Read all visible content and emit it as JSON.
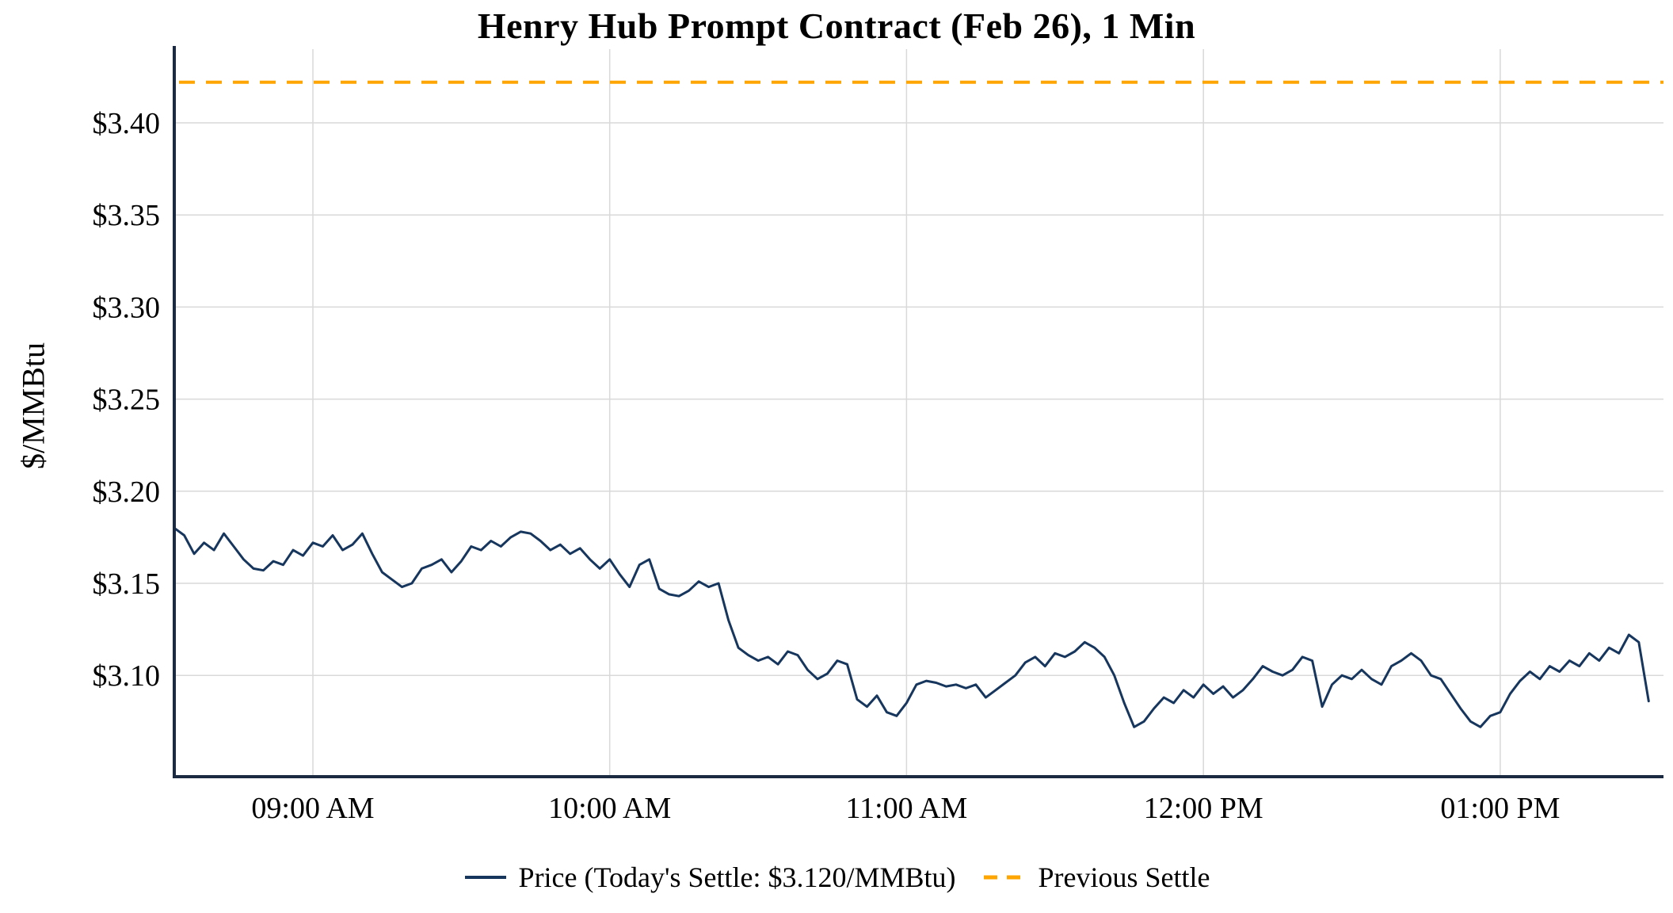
{
  "chart_data": {
    "type": "line",
    "title": "Henry Hub Prompt Contract (Feb 26), 1 Min",
    "xlabel": "",
    "ylabel": "$/MMBtu",
    "ylim": [
      3.045,
      3.44
    ],
    "xlim_hours": [
      8.533,
      13.55
    ],
    "grid": true,
    "grid_color": "#d9d9d9",
    "axis_color": "#1b2a41",
    "background_color": "#ffffff",
    "legend_position": "bottom",
    "x_ticks": [
      {
        "hour": 9,
        "label": "09:00 AM"
      },
      {
        "hour": 10,
        "label": "10:00 AM"
      },
      {
        "hour": 11,
        "label": "11:00 AM"
      },
      {
        "hour": 12,
        "label": "12:00 PM"
      },
      {
        "hour": 13,
        "label": "01:00 PM"
      }
    ],
    "y_ticks": [
      {
        "value": 3.1,
        "label": "$3.10"
      },
      {
        "value": 3.15,
        "label": "$3.15"
      },
      {
        "value": 3.2,
        "label": "$3.20"
      },
      {
        "value": 3.25,
        "label": "$3.25"
      },
      {
        "value": 3.3,
        "label": "$3.30"
      },
      {
        "value": 3.35,
        "label": "$3.35"
      },
      {
        "value": 3.4,
        "label": "$3.40"
      }
    ],
    "series": [
      {
        "name": "Price (Today's Settle: $3.120/MMBtu)",
        "color": "#17365d",
        "style": "solid",
        "start_hour": 8.5333,
        "interval_minutes": 2,
        "values": [
          3.18,
          3.176,
          3.166,
          3.172,
          3.168,
          3.177,
          3.17,
          3.163,
          3.158,
          3.157,
          3.162,
          3.16,
          3.168,
          3.165,
          3.172,
          3.17,
          3.176,
          3.168,
          3.171,
          3.177,
          3.166,
          3.156,
          3.152,
          3.148,
          3.15,
          3.158,
          3.16,
          3.163,
          3.156,
          3.162,
          3.17,
          3.168,
          3.173,
          3.17,
          3.175,
          3.178,
          3.177,
          3.173,
          3.168,
          3.171,
          3.166,
          3.169,
          3.163,
          3.158,
          3.163,
          3.155,
          3.148,
          3.16,
          3.163,
          3.147,
          3.144,
          3.143,
          3.146,
          3.151,
          3.148,
          3.15,
          3.13,
          3.115,
          3.111,
          3.108,
          3.11,
          3.106,
          3.113,
          3.111,
          3.103,
          3.098,
          3.101,
          3.108,
          3.106,
          3.087,
          3.083,
          3.089,
          3.08,
          3.078,
          3.085,
          3.095,
          3.097,
          3.096,
          3.094,
          3.095,
          3.093,
          3.095,
          3.088,
          3.092,
          3.096,
          3.1,
          3.107,
          3.11,
          3.105,
          3.112,
          3.11,
          3.113,
          3.118,
          3.115,
          3.11,
          3.1,
          3.085,
          3.072,
          3.075,
          3.082,
          3.088,
          3.085,
          3.092,
          3.088,
          3.095,
          3.09,
          3.094,
          3.088,
          3.092,
          3.098,
          3.105,
          3.102,
          3.1,
          3.103,
          3.11,
          3.108,
          3.083,
          3.095,
          3.1,
          3.098,
          3.103,
          3.098,
          3.095,
          3.105,
          3.108,
          3.112,
          3.108,
          3.1,
          3.098,
          3.09,
          3.082,
          3.075,
          3.072,
          3.078,
          3.08,
          3.09,
          3.097,
          3.102,
          3.098,
          3.105,
          3.102,
          3.108,
          3.105,
          3.112,
          3.108,
          3.115,
          3.112,
          3.122,
          3.118,
          3.086
        ]
      },
      {
        "name": "Previous Settle",
        "color": "#ffa500",
        "style": "dashed",
        "constant_value": 3.422
      }
    ]
  }
}
